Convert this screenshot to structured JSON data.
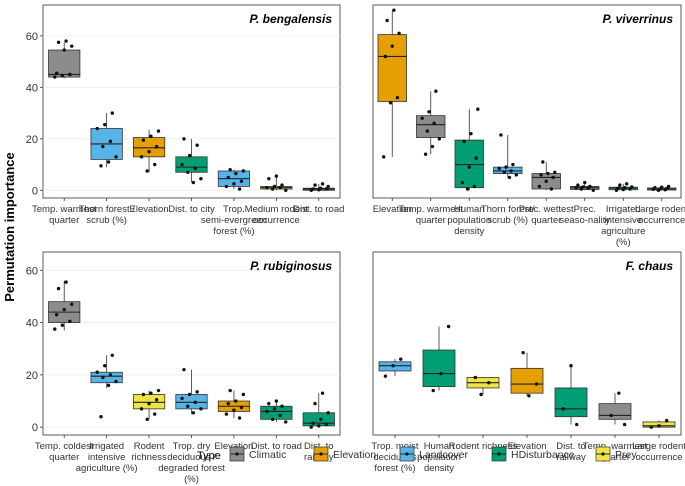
{
  "figure": {
    "ylabel": "Permutation importance",
    "legend": {
      "title": "Type",
      "items": [
        {
          "name": "Climatic",
          "color": "#8c8c8c"
        },
        {
          "name": "Elevation",
          "color": "#e69f00"
        },
        {
          "name": "Landcover",
          "color": "#56b4e9"
        },
        {
          "name": "HDisturbance",
          "color": "#009e73"
        },
        {
          "name": "Prey",
          "color": "#f0e442"
        }
      ]
    }
  },
  "chart_data": [
    {
      "type": "box",
      "title": "P. bengalensis",
      "xlabel": "",
      "ylabel": "Permutation importance",
      "ylim": [
        -3,
        72
      ],
      "yticks": [
        0,
        20,
        40,
        60
      ],
      "categories": [
        {
          "label": "Temp. warmest quarter",
          "group": "Climatic",
          "q1": 44,
          "median": 45,
          "q3": 54.5,
          "lo": 43.5,
          "hi": 57.5,
          "points": [
            44,
            44.5,
            45,
            45.5,
            54.5,
            56,
            57.5,
            58
          ]
        },
        {
          "label": "Thorn forest / scrub (%)",
          "group": "Landcover",
          "q1": 12,
          "median": 18,
          "q3": 24,
          "lo": 9,
          "hi": 30,
          "points": [
            9.5,
            11,
            13,
            17,
            19,
            24,
            25.5,
            30
          ]
        },
        {
          "label": "Elevation",
          "group": "Elevation",
          "q1": 13,
          "median": 16.5,
          "q3": 20.5,
          "lo": 7,
          "hi": 23.5,
          "points": [
            7.5,
            10,
            13,
            15,
            17,
            19.5,
            21,
            23
          ]
        },
        {
          "label": "Dist. to city",
          "group": "HDisturbance",
          "q1": 7,
          "median": 9,
          "q3": 13,
          "lo": 3,
          "hi": 20,
          "points": [
            3,
            4.5,
            7,
            8.5,
            10,
            13.5,
            17.5,
            20
          ]
        },
        {
          "label": "Trop. semi-evergreen forest (%)",
          "group": "Landcover",
          "q1": 1.5,
          "median": 4.5,
          "q3": 7.5,
          "lo": 0.5,
          "hi": 8,
          "points": [
            0.5,
            1.5,
            2.5,
            3.5,
            5,
            6.5,
            7.5,
            8
          ]
        },
        {
          "label": "Medium rodent occurrence",
          "group": "Prey",
          "q1": 0.5,
          "median": 1,
          "q3": 1.5,
          "lo": 0,
          "hi": 5.5,
          "points": [
            0,
            0.5,
            1,
            1,
            1.5,
            2,
            4.5,
            5.5
          ]
        },
        {
          "label": "Dist. to road",
          "group": "HDisturbance",
          "q1": 0,
          "median": 0.5,
          "q3": 0.8,
          "lo": 0,
          "hi": 2.5,
          "points": [
            0,
            0.2,
            0.5,
            0.5,
            0.8,
            1.5,
            2,
            2.5
          ]
        }
      ]
    },
    {
      "type": "box",
      "title": "P. viverrinus",
      "xlabel": "",
      "ylabel": "",
      "ylim": [
        -3,
        72
      ],
      "yticks": [],
      "categories": [
        {
          "label": "Elevation",
          "group": "Elevation",
          "q1": 34.5,
          "median": 52,
          "q3": 60.5,
          "lo": 13,
          "hi": 70,
          "points": [
            13,
            34,
            36,
            52,
            56,
            61,
            66,
            70
          ]
        },
        {
          "label": "Temp. warmest quarter",
          "group": "Climatic",
          "q1": 20.5,
          "median": 25.5,
          "q3": 29,
          "lo": 14,
          "hi": 38.5,
          "points": [
            14,
            17,
            20,
            23,
            26,
            28,
            30.5,
            38.5
          ]
        },
        {
          "label": "Human population density",
          "group": "HDisturbance",
          "q1": 1,
          "median": 10,
          "q3": 19.5,
          "lo": 0,
          "hi": 31.5,
          "points": [
            0.5,
            1.5,
            3,
            9,
            12.5,
            19,
            22,
            31.5
          ]
        },
        {
          "label": "Thorn forest/ scrub (%)",
          "group": "Landcover",
          "q1": 6.5,
          "median": 7.5,
          "q3": 9,
          "lo": 5,
          "hi": 21.5,
          "points": [
            5,
            6,
            7,
            7.5,
            8.5,
            9,
            10,
            21.5
          ]
        },
        {
          "label": "Prec. wettest quarter",
          "group": "Climatic",
          "q1": 0.5,
          "median": 5,
          "q3": 6.5,
          "lo": 0,
          "hi": 11,
          "points": [
            0.5,
            1.5,
            3.5,
            5,
            6,
            6.5,
            7,
            11
          ]
        },
        {
          "label": "Prec. seaso-nality",
          "group": "Climatic",
          "q1": 0.3,
          "median": 1,
          "q3": 1.5,
          "lo": 0,
          "hi": 3,
          "points": [
            0,
            0.5,
            0.8,
            1,
            1.3,
            1.5,
            2,
            3
          ]
        },
        {
          "label": "Irrigated intensive agriculture (%)",
          "group": "Landcover",
          "q1": 0.2,
          "median": 0.8,
          "q3": 1.2,
          "lo": 0,
          "hi": 2.5,
          "points": [
            0,
            0.3,
            0.5,
            0.8,
            1,
            1.3,
            2,
            2.5
          ]
        },
        {
          "label": "Large rodent occurrence",
          "group": "Prey",
          "q1": 0.1,
          "median": 0.5,
          "q3": 0.9,
          "lo": 0,
          "hi": 1.5,
          "points": [
            0,
            0.2,
            0.4,
            0.5,
            0.7,
            1,
            1.2,
            1.5
          ]
        }
      ]
    },
    {
      "type": "box",
      "title": "P. rubiginosus",
      "xlabel": "",
      "ylabel": "Permutation importance",
      "ylim": [
        -3,
        67
      ],
      "yticks": [
        0,
        20,
        40,
        60
      ],
      "categories": [
        {
          "label": "Temp. coldest quarter",
          "group": "Climatic",
          "q1": 40,
          "median": 44,
          "q3": 48,
          "lo": 37,
          "hi": 56,
          "points": [
            37.5,
            39,
            40.5,
            43,
            45,
            47,
            53,
            55.5
          ]
        },
        {
          "label": "Irrigated intensive agriculture (%)",
          "group": "Landcover",
          "q1": 17,
          "median": 19.5,
          "q3": 21,
          "lo": 15,
          "hi": 27.5,
          "points": [
            4,
            16,
            17.5,
            19,
            20,
            21,
            23.5,
            27.5
          ]
        },
        {
          "label": "Rodent richness",
          "group": "Prey",
          "q1": 7,
          "median": 9.5,
          "q3": 12.5,
          "lo": 3,
          "hi": 14,
          "points": [
            3,
            5,
            7,
            9,
            10.5,
            12.5,
            13,
            14
          ]
        },
        {
          "label": "Trop. dry deciduous / degraded forest (%)",
          "group": "Landcover",
          "q1": 7,
          "median": 9.5,
          "q3": 12.5,
          "lo": 5,
          "hi": 22,
          "points": [
            5.5,
            7,
            8,
            9.5,
            11,
            12.5,
            13.5,
            22
          ]
        },
        {
          "label": "Elevation",
          "group": "Elevation",
          "q1": 6,
          "median": 8,
          "q3": 10,
          "lo": 3.5,
          "hi": 14,
          "points": [
            3.5,
            5,
            6.5,
            7.5,
            9,
            10,
            12.5,
            14
          ]
        },
        {
          "label": "Dist. to road",
          "group": "HDisturbance",
          "q1": 3,
          "median": 6,
          "q3": 8,
          "lo": 2,
          "hi": 10,
          "points": [
            2,
            3,
            4.5,
            6,
            7,
            8,
            9,
            10
          ]
        },
        {
          "label": "Dist. to railway",
          "group": "HDisturbance",
          "q1": 0.5,
          "median": 1.5,
          "q3": 5.5,
          "lo": 0,
          "hi": 13,
          "points": [
            0,
            0.5,
            1,
            1.5,
            3,
            5.5,
            9,
            13
          ]
        }
      ]
    },
    {
      "type": "box",
      "title": "F. chaus",
      "xlabel": "",
      "ylabel": "",
      "ylim": [
        -3,
        67
      ],
      "yticks": [],
      "categories": [
        {
          "label": "Trop. moist deciduous forest (%)",
          "group": "Landcover",
          "q1": 21.5,
          "median": 23.5,
          "q3": 25,
          "lo": 19.5,
          "hi": 26,
          "points": [
            19.5,
            23.5,
            26
          ]
        },
        {
          "label": "Human population density",
          "group": "HDisturbance",
          "q1": 15.5,
          "median": 20.5,
          "q3": 29.5,
          "lo": 14,
          "hi": 38.5,
          "points": [
            14,
            20.5,
            38.5
          ]
        },
        {
          "label": "Rodent richness",
          "group": "Prey",
          "q1": 15,
          "median": 17,
          "q3": 19,
          "lo": 12.5,
          "hi": 19,
          "points": [
            12.5,
            17,
            19
          ]
        },
        {
          "label": "Elevation",
          "group": "Elevation",
          "q1": 13,
          "median": 16.5,
          "q3": 22.5,
          "lo": 12,
          "hi": 28.5,
          "points": [
            12,
            16.5,
            28.5
          ]
        },
        {
          "label": "Dist. to railway",
          "group": "HDisturbance",
          "q1": 4,
          "median": 7,
          "q3": 15,
          "lo": 1,
          "hi": 23.5,
          "points": [
            1,
            7,
            23.5
          ]
        },
        {
          "label": "Temp. warmest quarter",
          "group": "Climatic",
          "q1": 3,
          "median": 4.5,
          "q3": 9,
          "lo": 1,
          "hi": 13,
          "points": [
            1,
            4.5,
            13
          ]
        },
        {
          "label": "Large rodent occurrence",
          "group": "Prey",
          "q1": 0,
          "median": 0.5,
          "q3": 2,
          "lo": 0,
          "hi": 2.5,
          "points": [
            0,
            0.5,
            2.5
          ]
        }
      ]
    }
  ]
}
